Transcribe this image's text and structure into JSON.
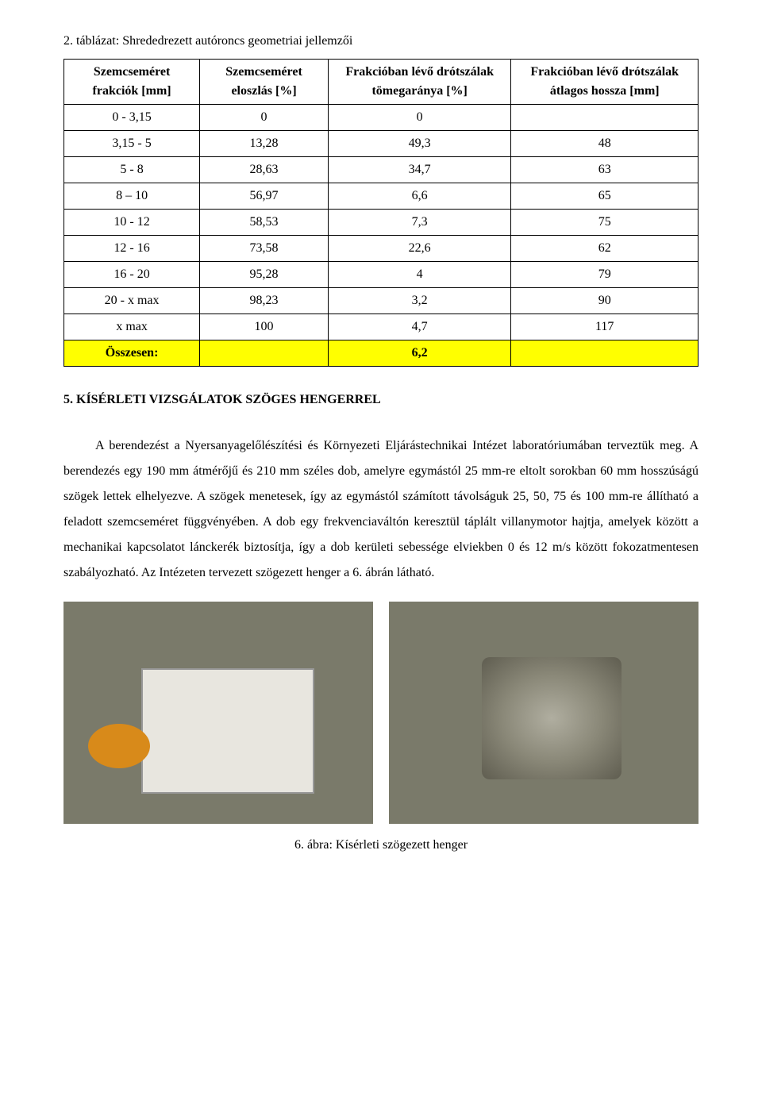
{
  "table": {
    "caption": "2. táblázat: Shrededrezett autóroncs geometriai jellemzői",
    "columns": [
      "Szemcseméret frakciók [mm]",
      "Szemcseméret eloszlás [%]",
      "Frakcióban lévő drótszálak tömegaránya [%]",
      "Frakcióban lévő drótszálak átlagos hossza [mm]"
    ],
    "rows": [
      [
        "0 - 3,15",
        "0",
        "0",
        ""
      ],
      [
        "3,15 - 5",
        "13,28",
        "49,3",
        "48"
      ],
      [
        "5 - 8",
        "28,63",
        "34,7",
        "63"
      ],
      [
        "8 – 10",
        "56,97",
        "6,6",
        "65"
      ],
      [
        "10 - 12",
        "58,53",
        "7,3",
        "75"
      ],
      [
        "12 - 16",
        "73,58",
        "22,6",
        "62"
      ],
      [
        "16 - 20",
        "95,28",
        "4",
        "79"
      ],
      [
        "20 - x max",
        "98,23",
        "3,2",
        "90"
      ],
      [
        "x max",
        "100",
        "4,7",
        "117"
      ]
    ],
    "total_row": [
      "Összesen:",
      "",
      "6,2",
      ""
    ]
  },
  "section_heading": "5. KÍSÉRLETI VIZSGÁLATOK SZÖGES HENGERREL",
  "paragraph": "A berendezést a Nyersanyagelőlészítési és Környezeti Eljárástechnikai Intézet laboratóriumában terveztük meg. A berendezés egy 190 mm átmérőjű és 210 mm széles dob, amelyre egymástól 25 mm-re eltolt sorokban 60 mm hosszúságú szögek lettek elhelyezve. A szögek menetesek, így az egymástól számított távolságuk 25, 50, 75 és 100 mm-re állítható a feladott szemcseméret függvényében. A dob egy frekvenciaváltón keresztül táplált villanymotor hajtja, amelyek között a mechanikai kapcsolatot lánckerék biztosítja, így a dob kerületi sebessége elviekben 0 és 12 m/s között fokozatmentesen szabályozható. Az Intézeten tervezett szögezett henger a 6. ábrán látható.",
  "figure_caption": "6. ábra: Kísérleti szögezett henger"
}
